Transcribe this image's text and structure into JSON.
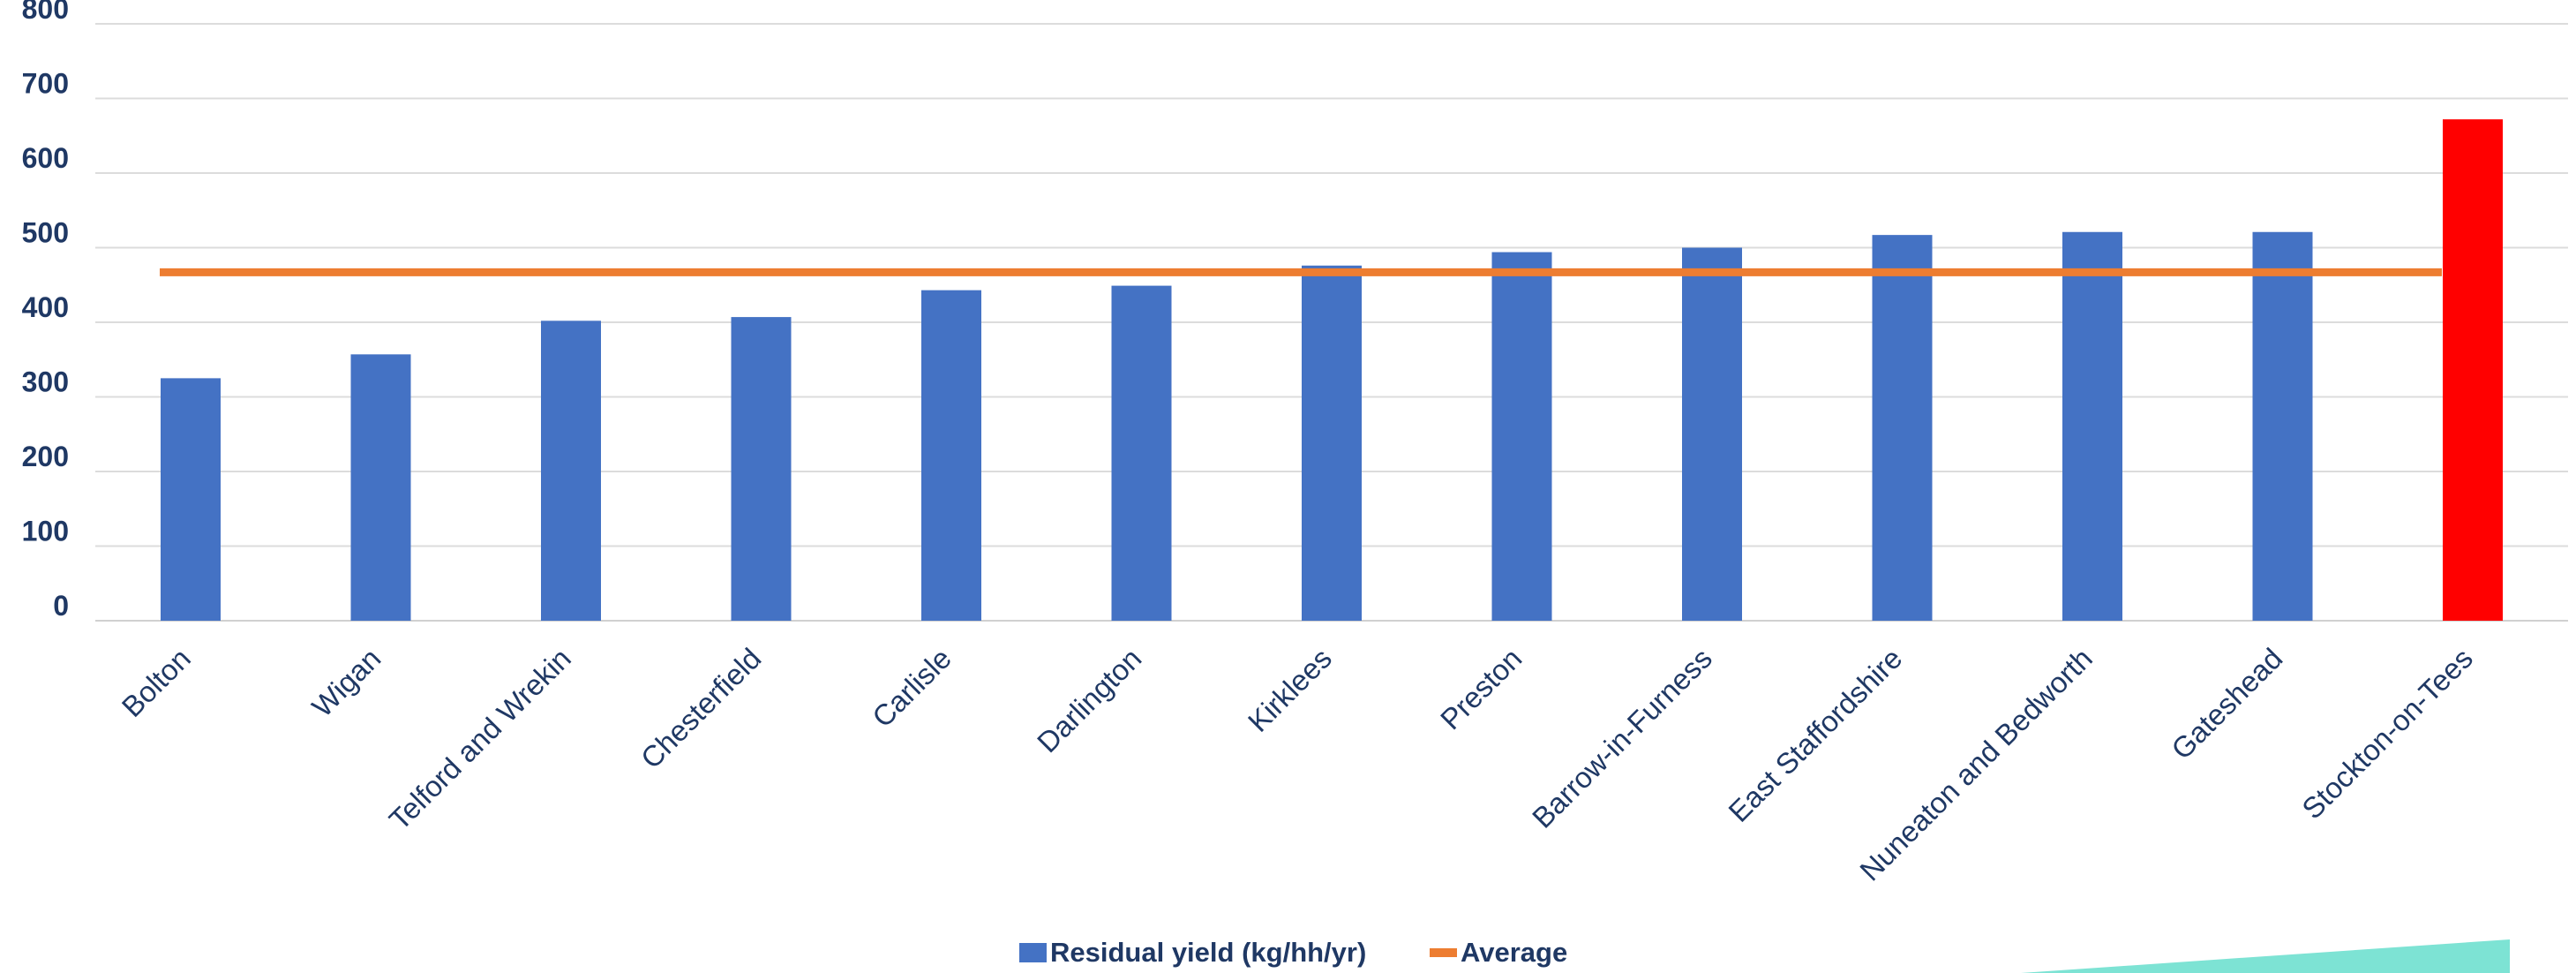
{
  "chart_data": {
    "type": "bar",
    "title": "",
    "xlabel": "",
    "ylabel": "",
    "ylim": [
      0,
      800
    ],
    "yticks": [
      0,
      100,
      200,
      300,
      400,
      500,
      600,
      700,
      800
    ],
    "grid": true,
    "legend_position": "bottom",
    "categories": [
      "Bolton",
      "Wigan",
      "Telford and Wrekin",
      "Chesterfield",
      "Carlisle",
      "Darlington",
      "Kirklees",
      "Preston",
      "Barrow-in-Furness",
      "East Staffordshire",
      "Nuneaton and Bedworth",
      "Gateshead",
      "Stockton-on-Tees"
    ],
    "series": [
      {
        "name": "Residual yield (kg/hh/yr)",
        "type": "bar",
        "color": "#4472c4",
        "highlight": {
          "category": "Stockton-on-Tees",
          "color": "#ff0000"
        },
        "values": [
          325,
          357,
          402,
          407,
          443,
          449,
          476,
          494,
          500,
          517,
          521,
          521,
          672
        ]
      },
      {
        "name": "Average",
        "type": "line",
        "color": "#ed7d31",
        "values": [
          467,
          467,
          467,
          467,
          467,
          467,
          467,
          467,
          467,
          467,
          467,
          467,
          467
        ]
      }
    ]
  },
  "decoration": {
    "accent_color": "#7de3d4"
  }
}
